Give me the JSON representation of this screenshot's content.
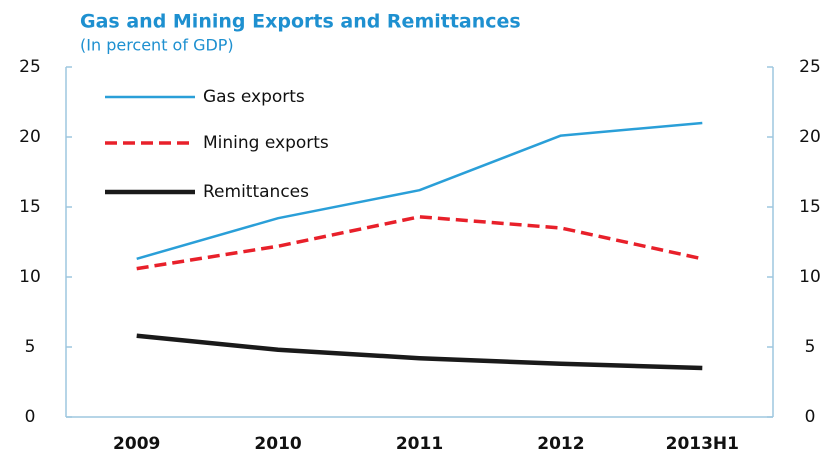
{
  "chart_data": {
    "type": "line",
    "title": "Gas and Mining Exports and Remittances",
    "subtitle": "(In percent of GDP)",
    "categories": [
      "2009",
      "2010",
      "2011",
      "2012",
      "2013H1"
    ],
    "series": [
      {
        "name": "Gas exports",
        "color": "#2a9fd8",
        "linestyle": "solid",
        "values": [
          11.3,
          14.2,
          16.2,
          20.1,
          21.0
        ]
      },
      {
        "name": "Mining exports",
        "color": "#e8202a",
        "linestyle": "dashed",
        "values": [
          10.6,
          12.2,
          14.3,
          13.5,
          11.3
        ]
      },
      {
        "name": "Remittances",
        "color": "#1a1a1a",
        "linestyle": "solid",
        "values": [
          5.8,
          4.8,
          4.2,
          3.8,
          3.5
        ]
      }
    ],
    "ylim": [
      0,
      25
    ],
    "yticks": [
      0,
      5,
      10,
      15,
      20,
      25
    ],
    "y2lim": [
      0,
      25
    ],
    "y2ticks": [
      0,
      5,
      10,
      15,
      20,
      25
    ],
    "grid": false,
    "legend": "upper left"
  }
}
